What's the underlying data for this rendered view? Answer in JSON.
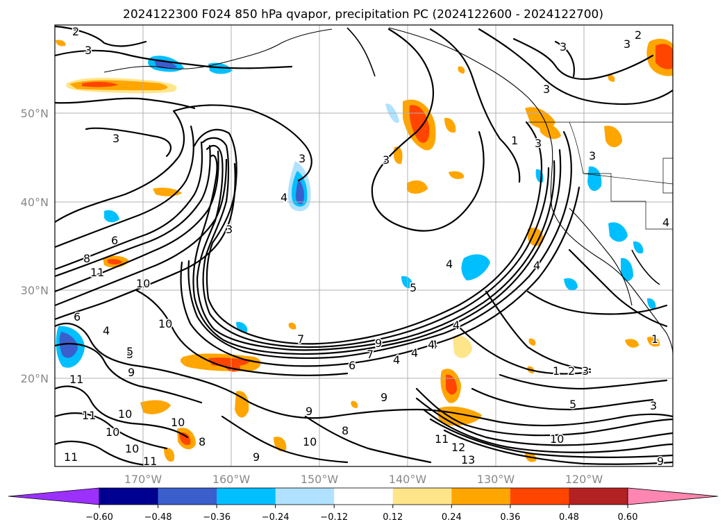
{
  "chart_data": {
    "type": "heatmap",
    "title": "2024122300 F024 850 hPa qvapor, precipitation PC (2024122600 - 2024122700)",
    "lon_ticks": [
      "170°W",
      "160°W",
      "150°W",
      "140°W",
      "130°W",
      "120°W"
    ],
    "lat_ticks": [
      "50°N",
      "40°N",
      "30°N",
      "20°N"
    ],
    "lon_range": [
      -180,
      -110
    ],
    "lat_range": [
      10,
      60
    ],
    "grid": true,
    "colorbar": {
      "orientation": "horizontal",
      "extend": "both",
      "boundaries": [
        -0.72,
        -0.6,
        -0.48,
        -0.36,
        -0.24,
        -0.12,
        0.12,
        0.24,
        0.36,
        0.48,
        0.6,
        0.72
      ],
      "tick_labels": [
        "−0.60",
        "−0.48",
        "−0.36",
        "−0.24",
        "−0.12",
        "0.12",
        "0.24",
        "0.36",
        "0.48",
        "0.60"
      ],
      "colors": [
        "#9b30ff",
        "#000090",
        "#3a5fcd",
        "#00bfff",
        "#b0e2ff",
        "#ffffff",
        "#ffe58a",
        "#ffa500",
        "#ff4500",
        "#b22222",
        "#ff86b0"
      ]
    },
    "contour_labels": [
      "2",
      "3",
      "3",
      "3",
      "3",
      "3",
      "3",
      "3",
      "3",
      "3",
      "4",
      "4",
      "4",
      "4",
      "4",
      "4",
      "4",
      "5",
      "5",
      "5",
      "6",
      "6",
      "6",
      "7",
      "7",
      "8",
      "8",
      "8",
      "9",
      "9",
      "9",
      "9",
      "9",
      "9",
      "10",
      "10",
      "10",
      "10",
      "10",
      "10",
      "10",
      "11",
      "11",
      "11",
      "11",
      "11",
      "12",
      "13",
      "1",
      "1",
      "1",
      "2",
      "2",
      "3",
      "3",
      "3",
      "4",
      "4",
      "4",
      "5",
      "10",
      "11"
    ]
  }
}
